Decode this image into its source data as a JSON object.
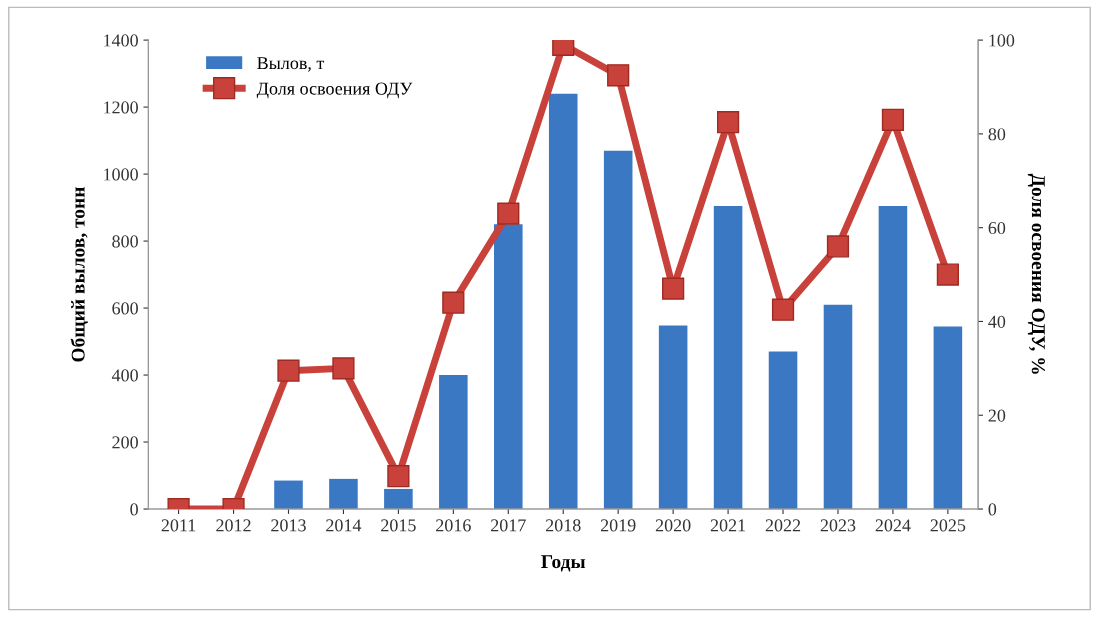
{
  "chart_data": {
    "type": "bar",
    "categories": [
      "2011",
      "2012",
      "2013",
      "2014",
      "2015",
      "2016",
      "2017",
      "2018",
      "2019",
      "2020",
      "2021",
      "2022",
      "2023",
      "2024",
      "2025"
    ],
    "series": [
      {
        "name": "Вылов, т",
        "color": "#3a78c4",
        "values": [
          0,
          0,
          85,
          90,
          60,
          400,
          850,
          1240,
          1070,
          548,
          905,
          470,
          610,
          905,
          545
        ]
      },
      {
        "name": "Доля освоения ОДУ",
        "type": "line",
        "axis": "y2",
        "color": "#c8413a",
        "marker": "square",
        "values": [
          0,
          0,
          29.5,
          30,
          7,
          44,
          63,
          99,
          92.5,
          47,
          82.5,
          42.5,
          56,
          83,
          50
        ]
      }
    ],
    "xlabel": "Годы",
    "ylabel": "Общий вылов, тонн",
    "y2label": "Доля освоения ОДУ, %",
    "ylim": [
      0,
      1400
    ],
    "yticks": [
      0,
      200,
      400,
      600,
      800,
      1000,
      1200,
      1400
    ],
    "y2lim": [
      0,
      100
    ],
    "y2ticks": [
      0,
      20,
      40,
      60,
      80,
      100
    ],
    "legend": "top left",
    "grid": false
  }
}
